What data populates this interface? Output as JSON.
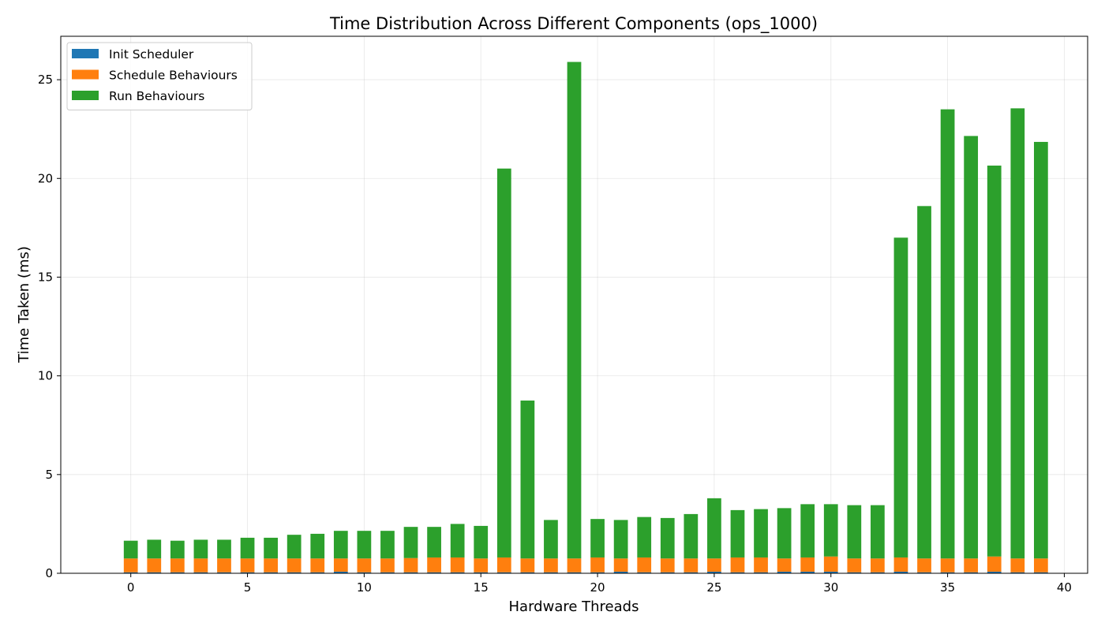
{
  "chart_data": {
    "type": "bar",
    "stacked": true,
    "title": "Time Distribution Across Different Components (ops_1000)",
    "xlabel": "Hardware Threads",
    "ylabel": "Time Taken (ms)",
    "xlim": [
      -3,
      41
    ],
    "ylim": [
      0,
      27.2
    ],
    "xticks": [
      0,
      5,
      10,
      15,
      20,
      25,
      30,
      35,
      40
    ],
    "yticks": [
      0,
      5,
      10,
      15,
      20,
      25
    ],
    "grid": true,
    "legend_position": "top-left",
    "x": [
      0,
      1,
      2,
      3,
      4,
      5,
      6,
      7,
      8,
      9,
      10,
      11,
      12,
      13,
      14,
      15,
      16,
      17,
      18,
      19,
      20,
      21,
      22,
      23,
      24,
      25,
      26,
      27,
      28,
      29,
      30,
      31,
      32,
      33,
      34,
      35,
      36,
      37,
      38,
      39
    ],
    "series": [
      {
        "name": "Init Scheduler",
        "color": "#1f77b4",
        "values": [
          0.05,
          0.05,
          0.05,
          0.05,
          0.05,
          0.05,
          0.05,
          0.05,
          0.05,
          0.08,
          0.05,
          0.05,
          0.05,
          0.05,
          0.05,
          0.05,
          0.05,
          0.05,
          0.05,
          0.05,
          0.05,
          0.08,
          0.05,
          0.05,
          0.05,
          0.08,
          0.05,
          0.05,
          0.08,
          0.08,
          0.08,
          0.05,
          0.05,
          0.08,
          0.05,
          0.05,
          0.05,
          0.08,
          0.05,
          0.05
        ]
      },
      {
        "name": "Schedule Behaviours",
        "color": "#ff7f0e",
        "values": [
          0.7,
          0.7,
          0.7,
          0.7,
          0.7,
          0.7,
          0.7,
          0.7,
          0.7,
          0.67,
          0.7,
          0.7,
          0.72,
          0.75,
          0.75,
          0.7,
          0.75,
          0.7,
          0.7,
          0.7,
          0.75,
          0.67,
          0.75,
          0.7,
          0.7,
          0.67,
          0.75,
          0.75,
          0.67,
          0.72,
          0.77,
          0.7,
          0.7,
          0.72,
          0.7,
          0.7,
          0.7,
          0.77,
          0.7,
          0.7
        ]
      },
      {
        "name": "Run Behaviours",
        "color": "#2ca02c",
        "values": [
          0.9,
          0.95,
          0.9,
          0.95,
          0.95,
          1.05,
          1.05,
          1.2,
          1.25,
          1.4,
          1.4,
          1.4,
          1.58,
          1.55,
          1.7,
          1.65,
          19.7,
          8.0,
          1.95,
          25.15,
          1.95,
          1.95,
          2.05,
          2.05,
          2.25,
          3.05,
          2.4,
          2.45,
          2.55,
          2.7,
          2.65,
          2.7,
          2.7,
          16.2,
          17.85,
          22.75,
          21.4,
          19.8,
          22.8,
          21.1
        ]
      }
    ]
  }
}
